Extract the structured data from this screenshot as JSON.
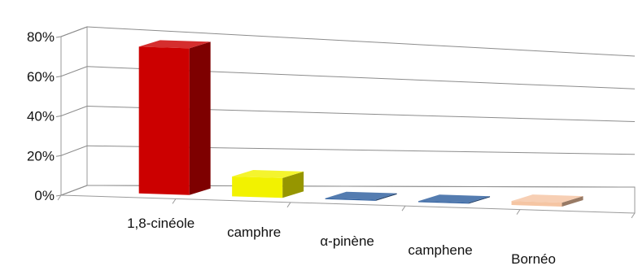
{
  "chart_data": {
    "type": "bar",
    "title": "",
    "xlabel": "",
    "ylabel": "",
    "categories": [
      "1,8-cinéole",
      "camphre",
      "α-pinène",
      "camphene",
      "Bornéo"
    ],
    "values": [
      74,
      10,
      0.5,
      0.5,
      2
    ],
    "ylim": [
      0,
      80
    ],
    "yticks": [
      "0%",
      "20%",
      "40%",
      "60%",
      "80%"
    ],
    "grid": true,
    "legend": "none",
    "style": "3d-column",
    "colors": [
      "#cc0000",
      "#f2f200",
      "#2f5f9f",
      "#2f5f9f",
      "#f5c5a3"
    ]
  }
}
